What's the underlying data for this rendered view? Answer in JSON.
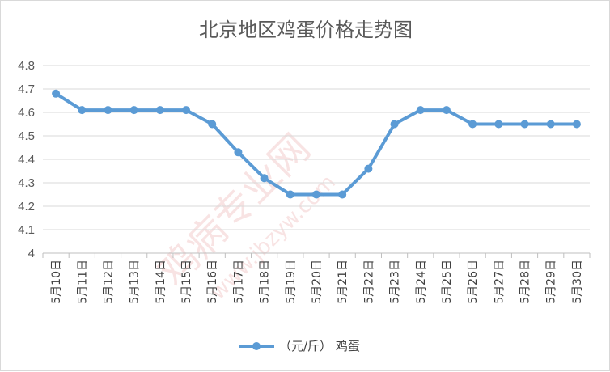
{
  "chart_data": {
    "type": "line",
    "title": "北京地区鸡蛋价格走势图",
    "categories": [
      "5月10日",
      "5月11日",
      "5月12日",
      "5月13日",
      "5月14日",
      "5月15日",
      "5月16日",
      "5月17日",
      "5月18日",
      "5月19日",
      "5月20日",
      "5月21日",
      "5月22日",
      "5月23日",
      "5月24日",
      "5月25日",
      "5月26日",
      "5月27日",
      "5月28日",
      "5月29日",
      "5月30日"
    ],
    "series": [
      {
        "name": "（元/斤） 鸡蛋",
        "values": [
          4.68,
          4.61,
          4.61,
          4.61,
          4.61,
          4.61,
          4.55,
          4.43,
          4.32,
          4.25,
          4.25,
          4.25,
          4.36,
          4.55,
          4.61,
          4.61,
          4.55,
          4.55,
          4.55,
          4.55,
          4.55
        ]
      }
    ],
    "ylim": [
      4,
      4.8
    ],
    "yticks": [
      "4",
      "4.1",
      "4.2",
      "4.3",
      "4.4",
      "4.5",
      "4.6",
      "4.7",
      "4.8"
    ],
    "grid": true,
    "legend_position": "bottom",
    "colors": {
      "line": "#5b9bd5",
      "grid": "#d9d9d9",
      "text": "#595959"
    }
  },
  "watermark": {
    "text": "鸡病专业网",
    "url": "www.jbzyw.com"
  }
}
